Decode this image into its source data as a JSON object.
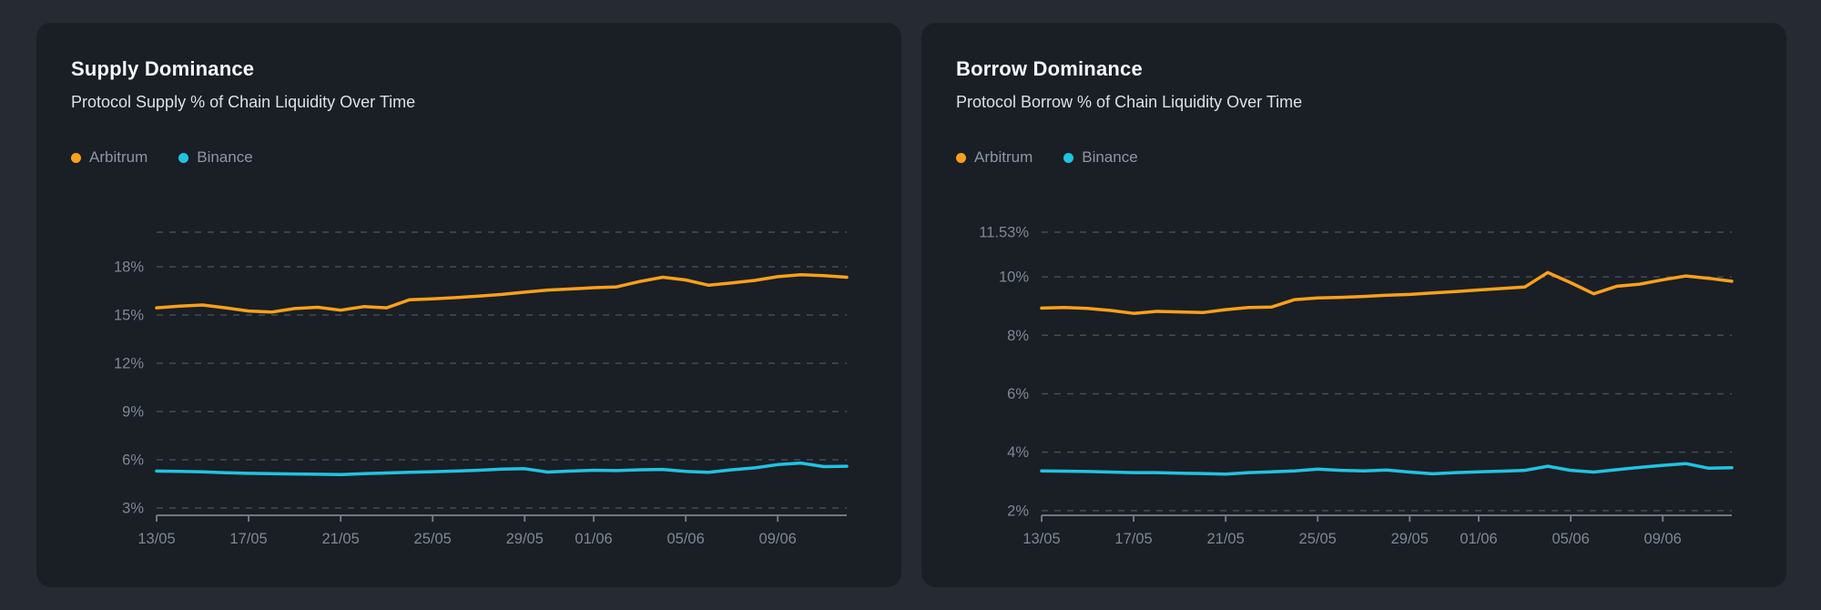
{
  "colors": {
    "page_bg": "#262A32",
    "card_bg": "#1A1E25",
    "arbitrum": "#F9A11B",
    "binance": "#20C4E0"
  },
  "cards": [
    {
      "title": "Supply Dominance",
      "subtitle": "Protocol Supply % of Chain Liquidity Over Time",
      "legend": [
        {
          "label": "Arbitrum",
          "color": "#F9A11B"
        },
        {
          "label": "Binance",
          "color": "#20C4E0"
        }
      ]
    },
    {
      "title": "Borrow Dominance",
      "subtitle": "Protocol Borrow % of Chain Liquidity Over Time",
      "legend": [
        {
          "label": "Arbitrum",
          "color": "#F9A11B"
        },
        {
          "label": "Binance",
          "color": "#20C4E0"
        }
      ]
    }
  ],
  "chart_data": [
    {
      "type": "line",
      "title": "Supply Dominance",
      "xlabel": "",
      "ylabel": "",
      "grid": "horizontal-dashed",
      "legend_position": "top-left",
      "x": [
        "13/05",
        "14/05",
        "15/05",
        "16/05",
        "17/05",
        "18/05",
        "19/05",
        "20/05",
        "21/05",
        "22/05",
        "23/05",
        "24/05",
        "25/05",
        "26/05",
        "27/05",
        "28/05",
        "29/05",
        "30/05",
        "31/05",
        "01/06",
        "02/06",
        "03/06",
        "04/06",
        "05/06",
        "06/06",
        "07/06",
        "08/06",
        "09/06",
        "10/06",
        "11/06",
        "12/06"
      ],
      "xticks": [
        "13/05",
        "17/05",
        "21/05",
        "25/05",
        "29/05",
        "01/06",
        "05/06",
        "09/06"
      ],
      "yticks": [
        {
          "value": 20.15,
          "label": ""
        },
        {
          "value": 18,
          "label": "18%"
        },
        {
          "value": 15,
          "label": "15%"
        },
        {
          "value": 12,
          "label": "12%"
        },
        {
          "value": 9,
          "label": "9%"
        },
        {
          "value": 6,
          "label": "6%"
        },
        {
          "value": 3,
          "label": "3%"
        }
      ],
      "ylim": [
        2.55,
        20.15
      ],
      "series": [
        {
          "name": "Arbitrum",
          "color": "#F9A11B",
          "values": [
            15.45,
            15.55,
            15.62,
            15.45,
            15.25,
            15.18,
            15.4,
            15.48,
            15.3,
            15.52,
            15.45,
            15.95,
            16.0,
            16.08,
            16.18,
            16.28,
            16.42,
            16.55,
            16.62,
            16.7,
            16.75,
            17.08,
            17.35,
            17.18,
            16.85,
            17.0,
            17.15,
            17.38,
            17.5,
            17.45,
            17.35
          ]
        },
        {
          "name": "Binance",
          "color": "#20C4E0",
          "values": [
            5.3,
            5.28,
            5.25,
            5.2,
            5.16,
            5.14,
            5.12,
            5.1,
            5.08,
            5.14,
            5.18,
            5.22,
            5.26,
            5.3,
            5.35,
            5.42,
            5.45,
            5.24,
            5.3,
            5.35,
            5.33,
            5.38,
            5.4,
            5.28,
            5.22,
            5.38,
            5.5,
            5.7,
            5.8,
            5.58,
            5.6
          ]
        }
      ]
    },
    {
      "type": "line",
      "title": "Borrow Dominance",
      "xlabel": "",
      "ylabel": "",
      "grid": "horizontal-dashed",
      "legend_position": "top-left",
      "x": [
        "13/05",
        "14/05",
        "15/05",
        "16/05",
        "17/05",
        "18/05",
        "19/05",
        "20/05",
        "21/05",
        "22/05",
        "23/05",
        "24/05",
        "25/05",
        "26/05",
        "27/05",
        "28/05",
        "29/05",
        "30/05",
        "31/05",
        "01/06",
        "02/06",
        "03/06",
        "04/06",
        "05/06",
        "06/06",
        "07/06",
        "08/06",
        "09/06",
        "10/06",
        "11/06",
        "12/06"
      ],
      "xticks": [
        "13/05",
        "17/05",
        "21/05",
        "25/05",
        "29/05",
        "01/06",
        "05/06",
        "09/06"
      ],
      "yticks": [
        {
          "value": 11.53,
          "label": "11.53%"
        },
        {
          "value": 10,
          "label": "10%"
        },
        {
          "value": 8,
          "label": "8%"
        },
        {
          "value": 6,
          "label": "6%"
        },
        {
          "value": 4,
          "label": "4%"
        },
        {
          "value": 2,
          "label": "2%"
        }
      ],
      "ylim": [
        1.84,
        11.53
      ],
      "series": [
        {
          "name": "Arbitrum",
          "color": "#F9A11B",
          "values": [
            8.93,
            8.95,
            8.92,
            8.85,
            8.75,
            8.82,
            8.8,
            8.78,
            8.88,
            8.95,
            8.97,
            9.22,
            9.28,
            9.3,
            9.33,
            9.37,
            9.4,
            9.45,
            9.5,
            9.55,
            9.6,
            9.65,
            10.15,
            9.8,
            9.42,
            9.68,
            9.75,
            9.9,
            10.03,
            9.95,
            9.85
          ]
        },
        {
          "name": "Binance",
          "color": "#20C4E0",
          "values": [
            3.36,
            3.35,
            3.34,
            3.32,
            3.3,
            3.3,
            3.28,
            3.27,
            3.25,
            3.3,
            3.33,
            3.36,
            3.42,
            3.38,
            3.36,
            3.39,
            3.32,
            3.26,
            3.3,
            3.33,
            3.35,
            3.38,
            3.52,
            3.38,
            3.32,
            3.4,
            3.48,
            3.55,
            3.61,
            3.45,
            3.47
          ]
        }
      ]
    }
  ]
}
